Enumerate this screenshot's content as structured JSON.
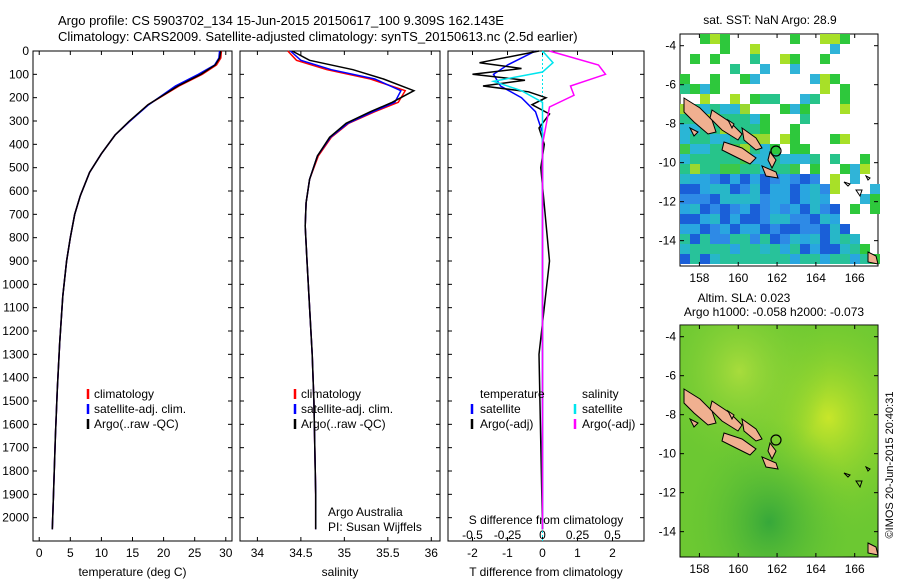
{
  "title": {
    "line1": "Argo profile: CS 5903702_134 15-Jun-2015 20150617_100 9.309S 162.143E",
    "line2": "Climatology: CARS2009. Satellite-adjusted climatology: synTS_20150613.nc (2.5d earlier)"
  },
  "colors": {
    "climatology": "#ff0000",
    "satellite": "#0000ff",
    "argo": "#000000",
    "s_satellite": "#00e5ee",
    "s_argo": "#ff00ff"
  },
  "chart_data": [
    {
      "type": "line",
      "id": "temperature",
      "xlabel": "temperature (deg C)",
      "ylabel": "",
      "xlim": [
        -1,
        31
      ],
      "ylim": [
        2100,
        0
      ],
      "xticks": [
        "0",
        "5",
        "10",
        "15",
        "20",
        "25",
        "30"
      ],
      "yticks": [
        "0",
        "100",
        "200",
        "300",
        "400",
        "500",
        "600",
        "700",
        "800",
        "900",
        "1000",
        "1100",
        "1200",
        "1300",
        "1400",
        "1500",
        "1600",
        "1700",
        "1800",
        "1900",
        "2000"
      ],
      "legend": [
        "climatology",
        "satellite-adj. clim.",
        "Argo(..raw -QC)"
      ],
      "series": [
        {
          "name": "climatology",
          "color_key": "climatology",
          "x": [
            29.3,
            29.2,
            28.5,
            26.2,
            22.5,
            17.5,
            14.6,
            12.2,
            10.0,
            8.1,
            6.6,
            5.7,
            5.0,
            4.4,
            3.8,
            3.3,
            2.9,
            2.6,
            2.3,
            2.1
          ],
          "y": [
            0,
            30,
            60,
            100,
            150,
            230,
            300,
            360,
            440,
            520,
            620,
            700,
            800,
            900,
            1050,
            1250,
            1450,
            1650,
            1900,
            2050
          ]
        },
        {
          "name": "satellite-adj. clim.",
          "color_key": "satellite",
          "x": [
            29.0,
            28.9,
            28.2,
            25.6,
            21.9,
            17.6,
            14.6,
            12.2,
            10.0,
            8.1,
            6.6,
            5.7,
            5.0,
            4.4,
            3.8,
            3.3,
            2.9,
            2.6,
            2.3,
            2.1
          ],
          "y": [
            0,
            30,
            60,
            100,
            150,
            230,
            300,
            360,
            440,
            520,
            620,
            700,
            800,
            900,
            1050,
            1250,
            1450,
            1650,
            1900,
            2050
          ]
        },
        {
          "name": "Argo(..raw -QC)",
          "color_key": "argo",
          "x": [
            29.2,
            29.0,
            28.3,
            26.0,
            22.3,
            17.5,
            14.5,
            12.2,
            10.0,
            8.1,
            6.6,
            5.7,
            5.0,
            4.4,
            3.8,
            3.3,
            2.9,
            2.6,
            2.3,
            2.1
          ],
          "y": [
            0,
            30,
            60,
            100,
            150,
            230,
            300,
            360,
            440,
            520,
            620,
            700,
            800,
            900,
            1050,
            1250,
            1450,
            1650,
            1900,
            2050
          ]
        }
      ]
    },
    {
      "type": "line",
      "id": "salinity",
      "xlabel": "salinity",
      "ylabel": "",
      "xlim": [
        33.8,
        36.1
      ],
      "ylim": [
        2100,
        0
      ],
      "xticks": [
        "34",
        "34.5",
        "35",
        "35.5",
        "36"
      ],
      "legend": [
        "climatology",
        "satellite-adj. clim.",
        "Argo(..raw -QC)"
      ],
      "notes": [
        "Argo Australia",
        "PI: Susan Wijffels"
      ],
      "series": [
        {
          "name": "climatology",
          "color_key": "climatology",
          "x": [
            34.35,
            34.45,
            34.8,
            35.3,
            35.7,
            35.62,
            35.35,
            35.05,
            34.85,
            34.7,
            34.6,
            34.56,
            34.55,
            34.57,
            34.6,
            34.63,
            34.65,
            34.66,
            34.67,
            34.67
          ],
          "y": [
            0,
            40,
            80,
            120,
            170,
            220,
            260,
            310,
            370,
            450,
            550,
            650,
            750,
            900,
            1100,
            1300,
            1500,
            1700,
            1900,
            2050
          ]
        },
        {
          "name": "satellite-adj. clim.",
          "color_key": "satellite",
          "x": [
            34.38,
            34.5,
            34.85,
            35.35,
            35.65,
            35.58,
            35.33,
            35.04,
            34.84,
            34.69,
            34.6,
            34.56,
            34.55,
            34.57,
            34.6,
            34.63,
            34.65,
            34.66,
            34.67,
            34.67
          ],
          "y": [
            0,
            40,
            80,
            120,
            170,
            220,
            260,
            310,
            370,
            450,
            550,
            650,
            750,
            900,
            1100,
            1300,
            1500,
            1700,
            1900,
            2050
          ]
        },
        {
          "name": "Argo(..raw -QC)",
          "color_key": "argo",
          "x": [
            34.4,
            34.6,
            35.1,
            35.45,
            35.8,
            35.55,
            35.3,
            35.02,
            34.83,
            34.69,
            34.6,
            34.56,
            34.55,
            34.57,
            34.6,
            34.63,
            34.65,
            34.66,
            34.67,
            34.67
          ],
          "y": [
            0,
            40,
            80,
            120,
            170,
            220,
            260,
            310,
            370,
            450,
            550,
            650,
            750,
            900,
            1100,
            1300,
            1500,
            1700,
            1900,
            2050
          ]
        }
      ]
    },
    {
      "type": "line",
      "id": "difference",
      "xlabel": "T difference from climatology",
      "xlabel_top": "S difference from climatology",
      "ylabel": "",
      "xlim": [
        -2.7,
        2.9
      ],
      "ylim": [
        2100,
        0
      ],
      "xticks_T": [
        "-2",
        "-1",
        "0",
        "1",
        "2"
      ],
      "xticks_S": [
        "-0.5",
        "-0.25",
        "0",
        "0.25",
        "0.5"
      ],
      "legend_T": {
        "title": "temperature",
        "items": [
          "satellite",
          "Argo(-adj)"
        ]
      },
      "legend_S": {
        "title": "salinity",
        "items": [
          "satellite",
          "Argo(-adj)"
        ]
      },
      "series": [
        {
          "name": "T satellite",
          "color_key": "satellite",
          "x": [
            -0.2,
            -1.0,
            -1.4,
            -1.2,
            -0.6,
            -0.2,
            0.0,
            0.0,
            0.0,
            0.0
          ],
          "y": [
            0,
            60,
            100,
            150,
            200,
            260,
            350,
            600,
            1200,
            2050
          ]
        },
        {
          "name": "T Argo(-adj)",
          "color_key": "argo",
          "x": [
            -0.1,
            -1.8,
            -0.6,
            -2.0,
            -0.5,
            -1.7,
            -0.4,
            0.1,
            -0.3,
            0.2,
            -0.1,
            0.05,
            -0.05,
            0.2,
            -0.1,
            0.0
          ],
          "y": [
            0,
            50,
            75,
            100,
            125,
            150,
            175,
            200,
            230,
            270,
            330,
            400,
            500,
            900,
            1300,
            2050
          ]
        },
        {
          "name": "S satellite",
          "color_key": "s_satellite",
          "x": [
            0.0,
            0.3,
            0.0,
            -1.4,
            -0.6,
            0.0,
            0.0,
            0.0
          ],
          "y": [
            0,
            50,
            90,
            130,
            170,
            220,
            400,
            2050
          ]
        },
        {
          "name": "S Argo(-adj)",
          "color_key": "s_argo",
          "x": [
            0.2,
            1.6,
            1.8,
            0.8,
            0.9,
            0.2,
            0.0,
            0.0
          ],
          "y": [
            0,
            60,
            100,
            150,
            190,
            240,
            400,
            2050
          ]
        }
      ]
    }
  ],
  "maps": {
    "top": {
      "title": "sat. SST: NaN Argo: 28.9",
      "yticks": [
        "-4",
        "-6",
        "-8",
        "-10",
        "-12",
        "-14"
      ],
      "xticks": [
        "158",
        "160",
        "162",
        "164",
        "166"
      ]
    },
    "bottom": {
      "title_line1": "Altim. SLA: 0.023",
      "title_line2": "Argo h1000: -0.058 h2000: -0.073",
      "yticks": [
        "-4",
        "-6",
        "-8",
        "-10",
        "-12",
        "-14"
      ],
      "xticks": [
        "158",
        "160",
        "162",
        "164",
        "166"
      ]
    }
  },
  "stamp": "©IMOS 20-Jun-2015 20:40:31"
}
